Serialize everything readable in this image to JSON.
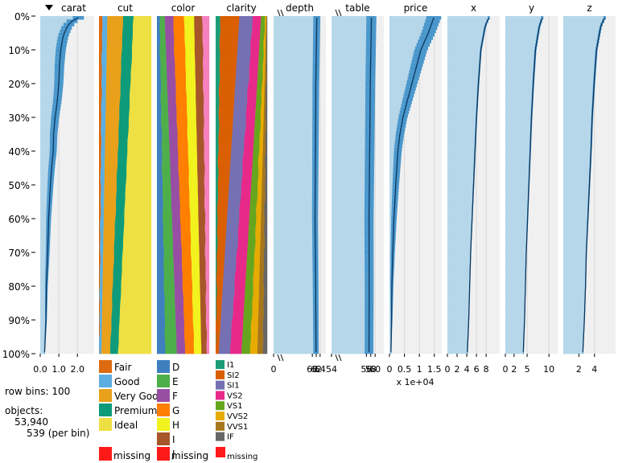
{
  "chart_data": {
    "type": "tableplot",
    "row_bins": "100",
    "objects": "53,940",
    "per_bin": "539 (per bin)",
    "row_bins_label": "row bins:",
    "objects_label": "objects:",
    "sort_column": "carat",
    "sort_direction": "descending",
    "y_ticks": [
      "0%",
      "10%",
      "20%",
      "30%",
      "40%",
      "50%",
      "60%",
      "70%",
      "80%",
      "90%",
      "100%"
    ],
    "x_multiplier_note": "x 1e+04",
    "missing_label": "missing",
    "numeric_columns": [
      {
        "name": "carat",
        "axis_min": 0,
        "axis_max": 2.9,
        "ticks": [
          "0.0",
          "1.0",
          "2.0"
        ],
        "tick_values": [
          0,
          1,
          2
        ],
        "broken": false,
        "profile": [
          [
            0,
            2.45
          ],
          [
            0.5,
            2.05
          ],
          [
            1,
            1.8
          ],
          [
            3,
            1.45
          ],
          [
            6,
            1.23
          ],
          [
            10,
            1.1
          ],
          [
            15,
            1.03
          ],
          [
            20,
            1.0
          ],
          [
            25,
            0.92
          ],
          [
            30,
            0.8
          ],
          [
            35,
            0.72
          ],
          [
            40,
            0.7
          ],
          [
            45,
            0.61
          ],
          [
            50,
            0.55
          ],
          [
            55,
            0.5
          ],
          [
            60,
            0.45
          ],
          [
            70,
            0.4
          ],
          [
            80,
            0.33
          ],
          [
            90,
            0.31
          ],
          [
            100,
            0.23
          ]
        ],
        "spread": [
          [
            0,
            0.3
          ],
          [
            100,
            0.02
          ]
        ]
      },
      {
        "name": "depth",
        "axis_min": 40,
        "axis_max": 67,
        "ticks": [
          "0",
          "60",
          "62",
          "64"
        ],
        "tick_values": [
          40,
          60,
          62,
          64
        ],
        "broken": true,
        "profile": [
          [
            0,
            62.3
          ],
          [
            20,
            61.8
          ],
          [
            40,
            61.6
          ],
          [
            60,
            61.4
          ],
          [
            80,
            61.7
          ],
          [
            100,
            61.9
          ]
        ],
        "spread": [
          [
            0,
            1.8
          ],
          [
            100,
            1.4
          ]
        ]
      },
      {
        "name": "table",
        "axis_min": 40,
        "axis_max": 64,
        "ticks": [
          "54",
          "56",
          "58",
          "60"
        ],
        "tick_values": [
          54,
          56,
          58,
          60
        ],
        "broken": true,
        "profile": [
          [
            0,
            58.3
          ],
          [
            20,
            57.8
          ],
          [
            40,
            57.5
          ],
          [
            60,
            57.2
          ],
          [
            80,
            57.3
          ],
          [
            100,
            57.2
          ]
        ],
        "spread": [
          [
            0,
            2.3
          ],
          [
            100,
            2.0
          ]
        ]
      },
      {
        "name": "price",
        "axis_min": 0,
        "axis_max": 1.75,
        "ticks": [
          "0",
          "0.5",
          "1",
          "1.5"
        ],
        "tick_values": [
          0,
          0.5,
          1,
          1.5
        ],
        "broken": false,
        "profile": [
          [
            0,
            1.5
          ],
          [
            5,
            1.3
          ],
          [
            10,
            1.05
          ],
          [
            15,
            0.9
          ],
          [
            20,
            0.75
          ],
          [
            25,
            0.6
          ],
          [
            30,
            0.45
          ],
          [
            35,
            0.35
          ],
          [
            40,
            0.28
          ],
          [
            50,
            0.21
          ],
          [
            60,
            0.15
          ],
          [
            70,
            0.11
          ],
          [
            80,
            0.08
          ],
          [
            90,
            0.07
          ],
          [
            100,
            0.05
          ]
        ],
        "spread": [
          [
            0,
            0.25
          ],
          [
            30,
            0.15
          ],
          [
            100,
            0.01
          ]
        ]
      },
      {
        "name": "x",
        "axis_min": 0,
        "axis_max": 10.8,
        "ticks": [
          "0",
          "2",
          "4",
          "6",
          "8"
        ],
        "tick_values": [
          0,
          2,
          4,
          6,
          8
        ],
        "broken": false,
        "profile": [
          [
            0,
            8.7
          ],
          [
            3,
            7.8
          ],
          [
            10,
            6.9
          ],
          [
            20,
            6.4
          ],
          [
            30,
            6.0
          ],
          [
            40,
            5.7
          ],
          [
            50,
            5.4
          ],
          [
            60,
            5.1
          ],
          [
            70,
            4.8
          ],
          [
            80,
            4.6
          ],
          [
            90,
            4.4
          ],
          [
            100,
            4.1
          ]
        ],
        "spread": [
          [
            0,
            0.2
          ],
          [
            100,
            0.05
          ]
        ]
      },
      {
        "name": "y",
        "axis_min": 0,
        "axis_max": 12,
        "ticks": [
          "0",
          "2",
          "5",
          "10"
        ],
        "tick_values": [
          0,
          2,
          5,
          10
        ],
        "broken": false,
        "profile": [
          [
            0,
            8.6
          ],
          [
            3,
            7.8
          ],
          [
            10,
            6.9
          ],
          [
            20,
            6.4
          ],
          [
            30,
            6.0
          ],
          [
            40,
            5.7
          ],
          [
            50,
            5.4
          ],
          [
            60,
            5.1
          ],
          [
            70,
            4.8
          ],
          [
            80,
            4.6
          ],
          [
            90,
            4.4
          ],
          [
            100,
            4.1
          ]
        ],
        "spread": [
          [
            0,
            0.25
          ],
          [
            100,
            0.05
          ]
        ]
      },
      {
        "name": "z",
        "axis_min": 0,
        "axis_max": 6.7,
        "ticks": [
          "2",
          "4"
        ],
        "tick_values": [
          2,
          4
        ],
        "broken": false,
        "profile": [
          [
            0,
            5.4
          ],
          [
            3,
            4.8
          ],
          [
            10,
            4.25
          ],
          [
            20,
            3.95
          ],
          [
            30,
            3.7
          ],
          [
            40,
            3.55
          ],
          [
            50,
            3.35
          ],
          [
            60,
            3.15
          ],
          [
            70,
            2.95
          ],
          [
            80,
            2.85
          ],
          [
            90,
            2.7
          ],
          [
            100,
            2.5
          ]
        ],
        "spread": [
          [
            0,
            0.15
          ],
          [
            100,
            0.04
          ]
        ]
      }
    ],
    "categorical_columns": [
      {
        "name": "cut",
        "categories": [
          "Fair",
          "Good",
          "Very Goo",
          "Premium",
          "Ideal"
        ],
        "colors": [
          "#DE6A10",
          "#5DAEE0",
          "#E9A11B",
          "#0E9B7A",
          "#EEE042"
        ],
        "start": [
          0.06,
          0.1,
          0.3,
          0.2,
          0.34
        ],
        "end": [
          0.005,
          0.04,
          0.17,
          0.15,
          0.635
        ]
      },
      {
        "name": "color",
        "categories": [
          "D",
          "E",
          "F",
          "G",
          "H",
          "I",
          "J"
        ],
        "colors": [
          "#3F7FBF",
          "#4EAF4A",
          "#984EA3",
          "#FF7F00",
          "#F2F21E",
          "#A65628",
          "#F781BF"
        ],
        "start": [
          0.05,
          0.1,
          0.16,
          0.21,
          0.19,
          0.16,
          0.13
        ],
        "end": [
          0.16,
          0.22,
          0.16,
          0.17,
          0.14,
          0.1,
          0.05
        ]
      },
      {
        "name": "clarity",
        "categories": [
          "I1",
          "SI2",
          "SI1",
          "VS2",
          "VS1",
          "VVS2",
          "VVS1",
          "IF"
        ],
        "colors": [
          "#1B9E77",
          "#D95F02",
          "#7570B3",
          "#E7298A",
          "#66A61E",
          "#E6AB02",
          "#A6761D",
          "#666666"
        ],
        "start": [
          0.09,
          0.37,
          0.26,
          0.16,
          0.08,
          0.025,
          0.01,
          0.005
        ],
        "end": [
          0.0,
          0.06,
          0.22,
          0.22,
          0.17,
          0.14,
          0.11,
          0.08
        ]
      }
    ]
  }
}
